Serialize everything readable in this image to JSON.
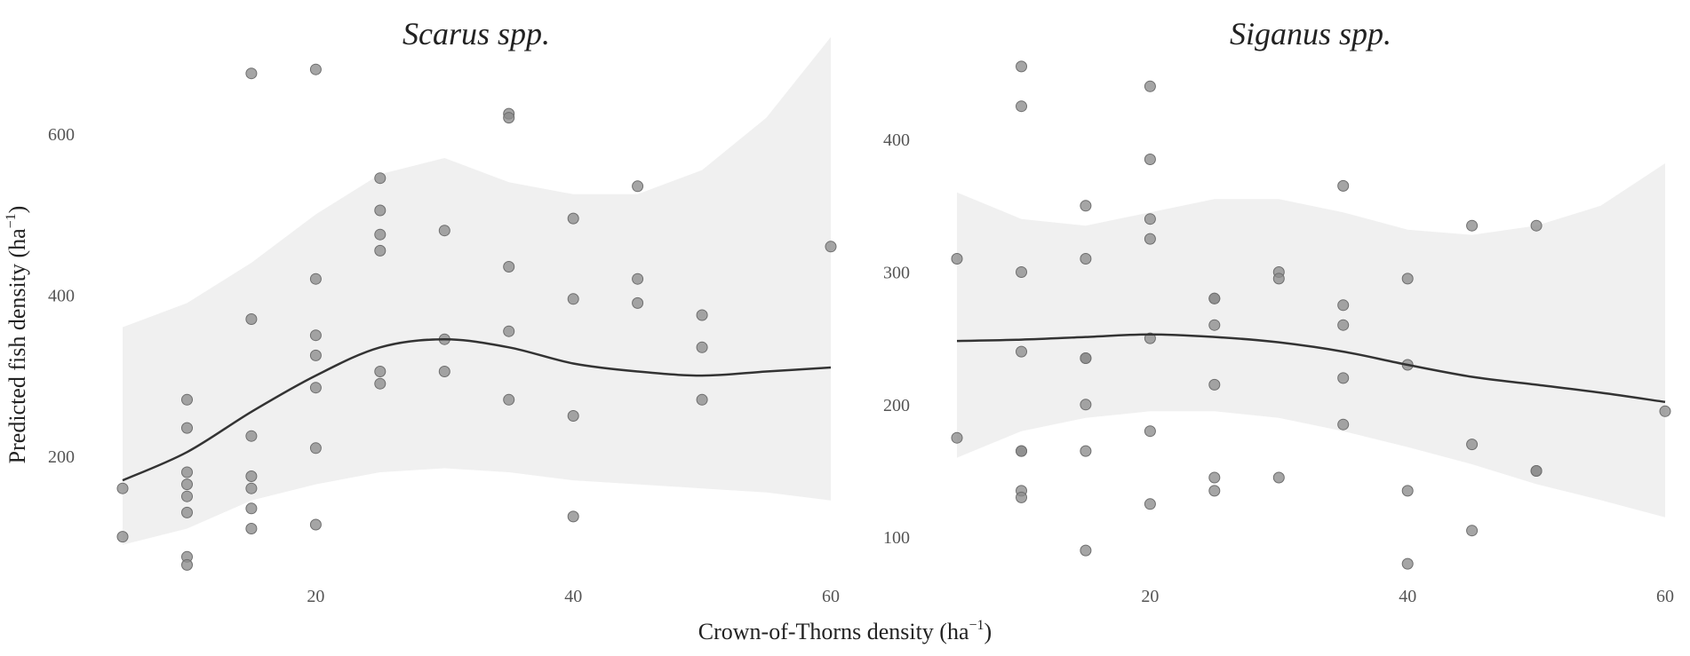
{
  "figure": {
    "xlabel": "Crown-of-Thorns density (ha",
    "ylabel": "Predicted fish density (ha",
    "unit_exponent": "−1",
    "unit_close": ")"
  },
  "chart_data": [
    {
      "type": "scatter",
      "title": "Scarus spp.",
      "xlabel": "Crown-of-Thorns density (ha−1)",
      "ylabel": "Predicted fish density (ha−1)",
      "xlim": [
        5,
        60
      ],
      "ylim": [
        50,
        700
      ],
      "xticks": [
        20,
        40,
        60
      ],
      "yticks": [
        200,
        400,
        600
      ],
      "grid": false,
      "point_color": "#8c8c8c",
      "line_color": "#333333",
      "band_color": "#f0f0f0",
      "points": [
        {
          "x": 5,
          "y": 160
        },
        {
          "x": 5,
          "y": 100
        },
        {
          "x": 10,
          "y": 270
        },
        {
          "x": 10,
          "y": 235
        },
        {
          "x": 10,
          "y": 180
        },
        {
          "x": 10,
          "y": 165
        },
        {
          "x": 10,
          "y": 150
        },
        {
          "x": 10,
          "y": 130
        },
        {
          "x": 10,
          "y": 75
        },
        {
          "x": 10,
          "y": 65
        },
        {
          "x": 15,
          "y": 675
        },
        {
          "x": 15,
          "y": 370
        },
        {
          "x": 15,
          "y": 225
        },
        {
          "x": 15,
          "y": 175
        },
        {
          "x": 15,
          "y": 160
        },
        {
          "x": 15,
          "y": 135
        },
        {
          "x": 15,
          "y": 110
        },
        {
          "x": 20,
          "y": 680
        },
        {
          "x": 20,
          "y": 420
        },
        {
          "x": 20,
          "y": 350
        },
        {
          "x": 20,
          "y": 325
        },
        {
          "x": 20,
          "y": 285
        },
        {
          "x": 20,
          "y": 210
        },
        {
          "x": 20,
          "y": 115
        },
        {
          "x": 25,
          "y": 545
        },
        {
          "x": 25,
          "y": 505
        },
        {
          "x": 25,
          "y": 475
        },
        {
          "x": 25,
          "y": 455
        },
        {
          "x": 25,
          "y": 305
        },
        {
          "x": 25,
          "y": 290
        },
        {
          "x": 30,
          "y": 480
        },
        {
          "x": 30,
          "y": 345
        },
        {
          "x": 30,
          "y": 305
        },
        {
          "x": 35,
          "y": 625
        },
        {
          "x": 35,
          "y": 620
        },
        {
          "x": 35,
          "y": 435
        },
        {
          "x": 35,
          "y": 355
        },
        {
          "x": 35,
          "y": 270
        },
        {
          "x": 40,
          "y": 495
        },
        {
          "x": 40,
          "y": 395
        },
        {
          "x": 40,
          "y": 250
        },
        {
          "x": 40,
          "y": 125
        },
        {
          "x": 45,
          "y": 535
        },
        {
          "x": 45,
          "y": 420
        },
        {
          "x": 45,
          "y": 390
        },
        {
          "x": 50,
          "y": 375
        },
        {
          "x": 50,
          "y": 335
        },
        {
          "x": 50,
          "y": 270
        },
        {
          "x": 60,
          "y": 460
        }
      ],
      "fit": {
        "x": [
          5,
          10,
          15,
          20,
          25,
          30,
          35,
          40,
          45,
          50,
          55,
          60
        ],
        "y": [
          170,
          205,
          255,
          300,
          335,
          345,
          335,
          315,
          305,
          300,
          305,
          310
        ],
        "lower": [
          90,
          110,
          145,
          165,
          180,
          185,
          180,
          170,
          165,
          160,
          155,
          145
        ],
        "upper": [
          360,
          390,
          440,
          500,
          550,
          570,
          540,
          525,
          525,
          555,
          620,
          720
        ]
      }
    },
    {
      "type": "scatter",
      "title": "Siganus spp.",
      "xlabel": "Crown-of-Thorns density (ha−1)",
      "ylabel": "Predicted fish density (ha−1)",
      "xlim": [
        5,
        60
      ],
      "ylim": [
        70,
        465
      ],
      "xticks": [
        20,
        40,
        60
      ],
      "yticks": [
        100,
        200,
        300,
        400
      ],
      "grid": false,
      "point_color": "#8c8c8c",
      "line_color": "#333333",
      "band_color": "#f0f0f0",
      "points": [
        {
          "x": 5,
          "y": 310
        },
        {
          "x": 5,
          "y": 175
        },
        {
          "x": 10,
          "y": 455
        },
        {
          "x": 10,
          "y": 425
        },
        {
          "x": 10,
          "y": 300
        },
        {
          "x": 10,
          "y": 240
        },
        {
          "x": 10,
          "y": 165
        },
        {
          "x": 10,
          "y": 165
        },
        {
          "x": 10,
          "y": 135
        },
        {
          "x": 10,
          "y": 130
        },
        {
          "x": 15,
          "y": 350
        },
        {
          "x": 15,
          "y": 310
        },
        {
          "x": 15,
          "y": 235
        },
        {
          "x": 15,
          "y": 235
        },
        {
          "x": 15,
          "y": 200
        },
        {
          "x": 15,
          "y": 165
        },
        {
          "x": 15,
          "y": 90
        },
        {
          "x": 20,
          "y": 440
        },
        {
          "x": 20,
          "y": 385
        },
        {
          "x": 20,
          "y": 340
        },
        {
          "x": 20,
          "y": 325
        },
        {
          "x": 20,
          "y": 250
        },
        {
          "x": 20,
          "y": 180
        },
        {
          "x": 20,
          "y": 125
        },
        {
          "x": 25,
          "y": 280
        },
        {
          "x": 25,
          "y": 280
        },
        {
          "x": 25,
          "y": 260
        },
        {
          "x": 25,
          "y": 215
        },
        {
          "x": 25,
          "y": 145
        },
        {
          "x": 25,
          "y": 135
        },
        {
          "x": 30,
          "y": 300
        },
        {
          "x": 30,
          "y": 295
        },
        {
          "x": 30,
          "y": 145
        },
        {
          "x": 35,
          "y": 365
        },
        {
          "x": 35,
          "y": 275
        },
        {
          "x": 35,
          "y": 260
        },
        {
          "x": 35,
          "y": 220
        },
        {
          "x": 35,
          "y": 185
        },
        {
          "x": 40,
          "y": 295
        },
        {
          "x": 40,
          "y": 230
        },
        {
          "x": 40,
          "y": 135
        },
        {
          "x": 40,
          "y": 80
        },
        {
          "x": 45,
          "y": 335
        },
        {
          "x": 45,
          "y": 170
        },
        {
          "x": 45,
          "y": 105
        },
        {
          "x": 50,
          "y": 335
        },
        {
          "x": 50,
          "y": 150
        },
        {
          "x": 50,
          "y": 150
        },
        {
          "x": 60,
          "y": 195
        }
      ],
      "fit": {
        "x": [
          5,
          10,
          15,
          20,
          25,
          30,
          35,
          40,
          45,
          50,
          55,
          60
        ],
        "y": [
          248,
          249,
          251,
          253,
          251,
          247,
          240,
          230,
          221,
          215,
          209,
          202
        ],
        "lower": [
          160,
          180,
          190,
          195,
          195,
          190,
          180,
          168,
          155,
          140,
          128,
          115
        ],
        "upper": [
          360,
          340,
          335,
          345,
          355,
          355,
          345,
          332,
          328,
          335,
          350,
          382
        ]
      }
    }
  ]
}
